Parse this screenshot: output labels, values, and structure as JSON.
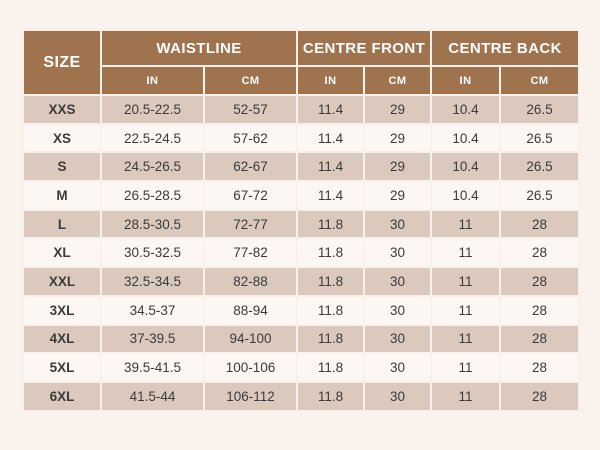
{
  "colors": {
    "page_bg": "#faf2ed",
    "header_bg": "#a0734f",
    "header_text": "#ffffff",
    "row_shaded_bg": "#dbc9be",
    "row_plain_bg": "#fcf7f3",
    "cell_text": "#3b3b3b",
    "grid_line": "#f8f0ea"
  },
  "table": {
    "header": {
      "size_label": "SIZE",
      "groups": [
        {
          "label": "WAISTLINE",
          "units": [
            "IN",
            "CM"
          ]
        },
        {
          "label": "CENTRE FRONT",
          "units": [
            "IN",
            "CM"
          ]
        },
        {
          "label": "CENTRE BACK",
          "units": [
            "IN",
            "CM"
          ]
        }
      ]
    }
  },
  "chart_data": {
    "type": "table",
    "title": "",
    "columns": [
      "SIZE",
      "WAISTLINE IN",
      "WAISTLINE CM",
      "CENTRE FRONT IN",
      "CENTRE FRONT CM",
      "CENTRE BACK IN",
      "CENTRE BACK CM"
    ],
    "rows": [
      [
        "XXS",
        "20.5-22.5",
        "52-57",
        "11.4",
        "29",
        "10.4",
        "26.5"
      ],
      [
        "XS",
        "22.5-24.5",
        "57-62",
        "11.4",
        "29",
        "10.4",
        "26.5"
      ],
      [
        "S",
        "24.5-26.5",
        "62-67",
        "11.4",
        "29",
        "10.4",
        "26.5"
      ],
      [
        "M",
        "26.5-28.5",
        "67-72",
        "11.4",
        "29",
        "10.4",
        "26.5"
      ],
      [
        "L",
        "28.5-30.5",
        "72-77",
        "11.8",
        "30",
        "11",
        "28"
      ],
      [
        "XL",
        "30.5-32.5",
        "77-82",
        "11.8",
        "30",
        "11",
        "28"
      ],
      [
        "XXL",
        "32.5-34.5",
        "82-88",
        "11.8",
        "30",
        "11",
        "28"
      ],
      [
        "3XL",
        "34.5-37",
        "88-94",
        "11.8",
        "30",
        "11",
        "28"
      ],
      [
        "4XL",
        "37-39.5",
        "94-100",
        "11.8",
        "30",
        "11",
        "28"
      ],
      [
        "5XL",
        "39.5-41.5",
        "100-106",
        "11.8",
        "30",
        "11",
        "28"
      ],
      [
        "6XL",
        "41.5-44",
        "106-112",
        "11.8",
        "30",
        "11",
        "28"
      ]
    ]
  }
}
